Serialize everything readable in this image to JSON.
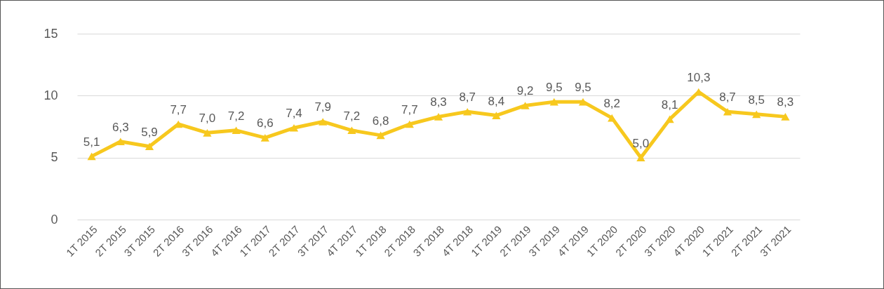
{
  "chart_data": {
    "type": "line",
    "categories": [
      "1T 2015",
      "2T 2015",
      "3T 2015",
      "2T 2016",
      "3T 2016",
      "4T 2016",
      "1T 2017",
      "2T 2017",
      "3T 2017",
      "4T 2017",
      "1T 2018",
      "2T 2018",
      "3T 2018",
      "4T 2018",
      "1T 2019",
      "2T 2019",
      "3T 2019",
      "4T 2019",
      "1T 2020",
      "2T 2020",
      "3T 2020",
      "4T 2020",
      "1T 2021",
      "2T 2021",
      "3T 2021"
    ],
    "series": [
      {
        "color": "#f7c81e",
        "values": [
          5.1,
          6.3,
          5.9,
          7.7,
          7.0,
          7.2,
          6.6,
          7.4,
          7.9,
          7.2,
          6.8,
          7.7,
          8.3,
          8.7,
          8.4,
          9.2,
          9.5,
          9.5,
          8.2,
          5.0,
          8.1,
          10.3,
          8.7,
          8.5,
          8.3
        ],
        "value_labels": [
          "5,1",
          "6,3",
          "5,9",
          "7,7",
          "7,0",
          "7,2",
          "6,6",
          "7,4",
          "7,9",
          "7,2",
          "6,8",
          "7,7",
          "8,3",
          "8,7",
          "8,4",
          "9,2",
          "9,5",
          "9,5",
          "8,2",
          "5,0",
          "8,1",
          "10,3",
          "8,7",
          "8,5",
          "8,3"
        ]
      }
    ],
    "ylim": [
      0,
      15
    ],
    "yticks": [
      0,
      5,
      10,
      15
    ],
    "grid": "y",
    "marker": "triangle",
    "line_style": "solid"
  }
}
